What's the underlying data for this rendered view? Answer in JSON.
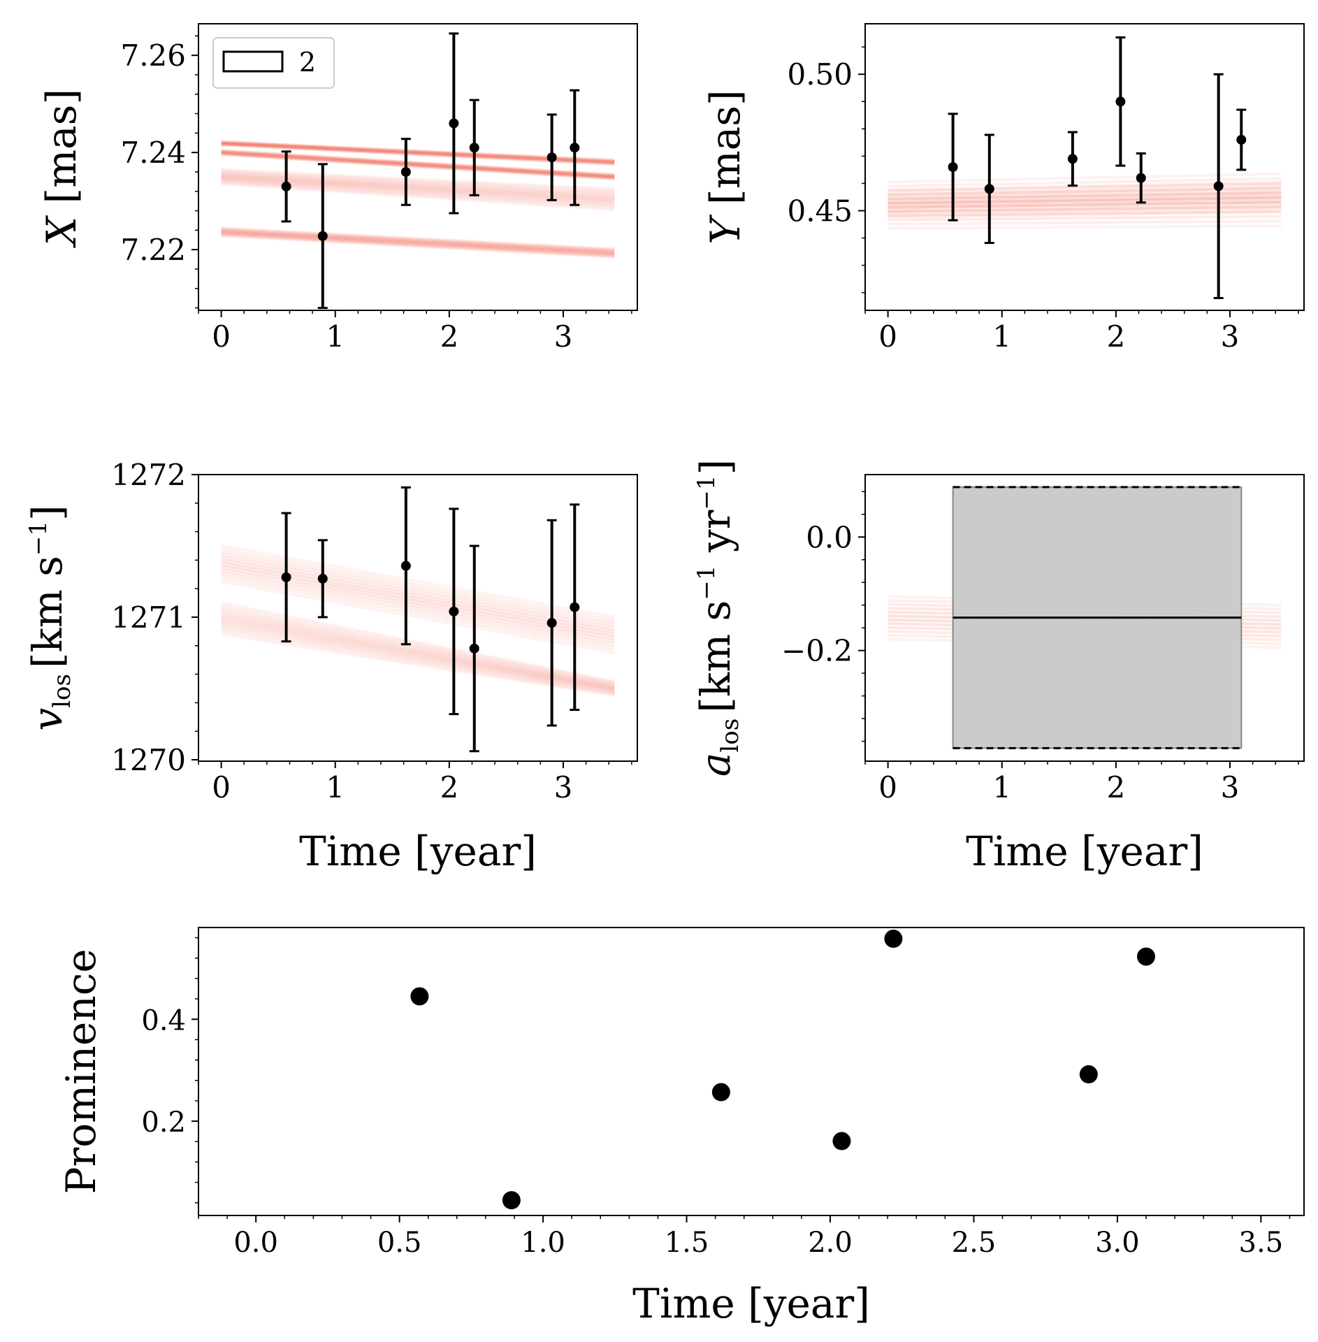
{
  "colors": {
    "model": "#f0503c",
    "data": "#000000",
    "range_fill": "#c8c8c8",
    "background": "#ffffff"
  },
  "chart_data": [
    {
      "id": "x",
      "type": "scatter",
      "title": "",
      "xlabel": "",
      "ylabel": "X [mas]",
      "xlim": [
        -0.2,
        3.65
      ],
      "ylim": [
        7.2075,
        7.2665
      ],
      "xticks": [
        0,
        1,
        2,
        3
      ],
      "xtick_labels": [
        "0",
        "1",
        "2",
        "3"
      ],
      "yticks": [
        7.22,
        7.24,
        7.26
      ],
      "ytick_labels": [
        "7.22",
        "7.24",
        "7.26"
      ],
      "legend": {
        "location": "top-left",
        "entries": [
          "2"
        ]
      },
      "points": [
        {
          "x": 0.57,
          "y": 7.233,
          "err": 0.0072
        },
        {
          "x": 0.89,
          "y": 7.2228,
          "err": 0.0148
        },
        {
          "x": 1.62,
          "y": 7.236,
          "err": 0.0068
        },
        {
          "x": 2.04,
          "y": 7.246,
          "err": 0.0185
        },
        {
          "x": 2.22,
          "y": 7.241,
          "err": 0.0098
        },
        {
          "x": 2.9,
          "y": 7.239,
          "err": 0.0088
        },
        {
          "x": 3.1,
          "y": 7.241,
          "err": 0.0118
        }
      ],
      "model_bands": [
        {
          "start": [
            7.2423,
            7.2415
          ],
          "end": [
            7.2385,
            7.2375
          ]
        },
        {
          "start": [
            7.2405,
            7.2395
          ],
          "end": [
            7.2355,
            7.2345
          ]
        },
        {
          "start": [
            7.2365,
            7.2335
          ],
          "end": [
            7.2325,
            7.2282
          ]
        },
        {
          "start": [
            7.2245,
            7.2228
          ],
          "end": [
            7.2202,
            7.2184
          ]
        }
      ],
      "model_range": [
        0,
        3.45
      ]
    },
    {
      "id": "y",
      "type": "scatter",
      "title": "",
      "xlabel": "",
      "ylabel": "Y [mas]",
      "xlim": [
        -0.2,
        3.65
      ],
      "ylim": [
        0.4135,
        0.5185
      ],
      "xticks": [
        0,
        1,
        2,
        3
      ],
      "xtick_labels": [
        "0",
        "1",
        "2",
        "3"
      ],
      "yticks": [
        0.45,
        0.5
      ],
      "ytick_labels": [
        "0.45",
        "0.50"
      ],
      "points": [
        {
          "x": 0.57,
          "y": 0.466,
          "err": 0.0195
        },
        {
          "x": 0.89,
          "y": 0.458,
          "err": 0.0198
        },
        {
          "x": 1.62,
          "y": 0.469,
          "err": 0.0098
        },
        {
          "x": 2.04,
          "y": 0.49,
          "err": 0.0235
        },
        {
          "x": 2.22,
          "y": 0.462,
          "err": 0.009
        },
        {
          "x": 2.9,
          "y": 0.459,
          "err": 0.041
        },
        {
          "x": 3.1,
          "y": 0.476,
          "err": 0.011
        }
      ],
      "model_bands": [
        {
          "start": [
            0.4605,
            0.4435
          ],
          "end": [
            0.4635,
            0.4445
          ]
        },
        {
          "start": [
            0.4575,
            0.4475
          ],
          "end": [
            0.4605,
            0.4495
          ]
        }
      ],
      "model_range": [
        0,
        3.45
      ]
    },
    {
      "id": "vlos",
      "type": "scatter",
      "title": "",
      "xlabel": "Time [year]",
      "ylabel": "v_los [km s^-1]",
      "xlabel_text": "Time [year]",
      "ylabel_main": "v",
      "ylabel_sub": "los",
      "ylabel_unit": "[km s",
      "ylabel_sup": "−1",
      "ylabel_close": "]",
      "xlim": [
        -0.2,
        3.65
      ],
      "ylim": [
        1269.99,
        1272.0
      ],
      "xticks": [
        0,
        1,
        2,
        3
      ],
      "xtick_labels": [
        "0",
        "1",
        "2",
        "3"
      ],
      "yticks": [
        1270,
        1271,
        1272
      ],
      "ytick_labels": [
        "1270",
        "1271",
        "1272"
      ],
      "points": [
        {
          "x": 0.57,
          "y": 1271.28,
          "err": 0.45
        },
        {
          "x": 0.89,
          "y": 1271.27,
          "err": 0.27
        },
        {
          "x": 1.62,
          "y": 1271.36,
          "err": 0.55
        },
        {
          "x": 2.04,
          "y": 1271.04,
          "err": 0.72
        },
        {
          "x": 2.22,
          "y": 1270.78,
          "err": 0.72
        },
        {
          "x": 2.9,
          "y": 1270.96,
          "err": 0.72
        },
        {
          "x": 3.1,
          "y": 1271.07,
          "err": 0.72
        }
      ],
      "model_bands": [
        {
          "start": [
            1271.5,
            1271.25
          ],
          "end": [
            1271.0,
            1270.75
          ]
        },
        {
          "start": [
            1271.1,
            1270.88
          ],
          "end": [
            1270.55,
            1270.45
          ]
        }
      ],
      "model_range": [
        0,
        3.45
      ]
    },
    {
      "id": "alos",
      "type": "line",
      "title": "",
      "xlabel": "Time [year]",
      "ylabel": "a_los [km s^-1 yr^-1]",
      "xlabel_text": "Time [year]",
      "ylabel_main": "a",
      "ylabel_sub": "los",
      "ylabel_unit": "[km s",
      "ylabel_sup1": "−1",
      "ylabel_mid": " yr",
      "ylabel_sup2": "−1",
      "ylabel_close": "]",
      "xlim": [
        -0.2,
        3.65
      ],
      "ylim": [
        -0.395,
        0.11
      ],
      "xticks": [
        0,
        1,
        2,
        3
      ],
      "xtick_labels": [
        "0",
        "1",
        "2",
        "3"
      ],
      "yticks": [
        -0.2,
        0.0
      ],
      "ytick_labels": [
        "−0.2",
        "0.0"
      ],
      "mean_line": {
        "x": [
          0.57,
          3.1
        ],
        "y": -0.142
      },
      "range_box": {
        "x": [
          0.57,
          3.1
        ],
        "y": [
          -0.372,
          0.088
        ]
      },
      "model_bands": [
        {
          "start": [
            -0.105,
            -0.18
          ],
          "end": [
            -0.12,
            -0.195
          ]
        }
      ],
      "model_range": [
        0,
        3.45
      ]
    },
    {
      "id": "prominence",
      "type": "scatter",
      "title": "",
      "xlabel": "Time [year]",
      "ylabel": "Prominence",
      "xlim": [
        -0.2,
        3.65
      ],
      "ylim": [
        0.015,
        0.58
      ],
      "xticks": [
        0,
        0.5,
        1,
        1.5,
        2,
        2.5,
        3,
        3.5
      ],
      "xtick_labels": [
        "0.0",
        "0.5",
        "1.0",
        "1.5",
        "2.0",
        "2.5",
        "3.0",
        "3.5"
      ],
      "yticks": [
        0.2,
        0.4
      ],
      "ytick_labels": [
        "0.2",
        "0.4"
      ],
      "points": [
        {
          "x": 0.57,
          "y": 0.445
        },
        {
          "x": 0.89,
          "y": 0.045
        },
        {
          "x": 1.62,
          "y": 0.257
        },
        {
          "x": 2.04,
          "y": 0.161
        },
        {
          "x": 2.22,
          "y": 0.558
        },
        {
          "x": 2.9,
          "y": 0.292
        },
        {
          "x": 3.1,
          "y": 0.523
        }
      ]
    }
  ]
}
